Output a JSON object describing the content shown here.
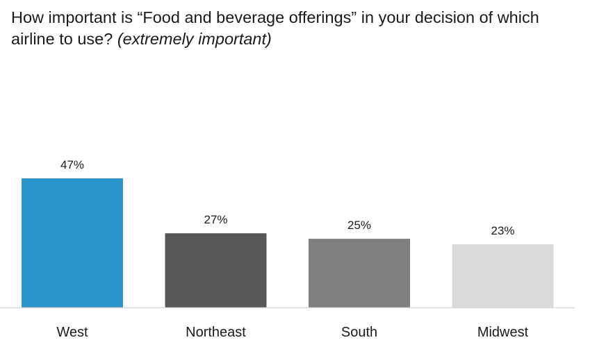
{
  "chart_data": {
    "type": "bar",
    "title": "How important is “Food and beverage offerings” in your decision of which airline to use?",
    "subtitle": "(extremely important)",
    "categories": [
      "West",
      "Northeast",
      "South",
      "Midwest"
    ],
    "values": [
      47,
      27,
      25,
      23
    ],
    "value_labels": [
      "47%",
      "27%",
      "25%",
      "23%"
    ],
    "colors": [
      "#2b94c8",
      "#595856",
      "#7f7f7f",
      "#d9d9d9"
    ],
    "xlabel": "",
    "ylabel": "",
    "ylim": [
      0,
      50
    ],
    "grid": false,
    "legend": "none"
  }
}
